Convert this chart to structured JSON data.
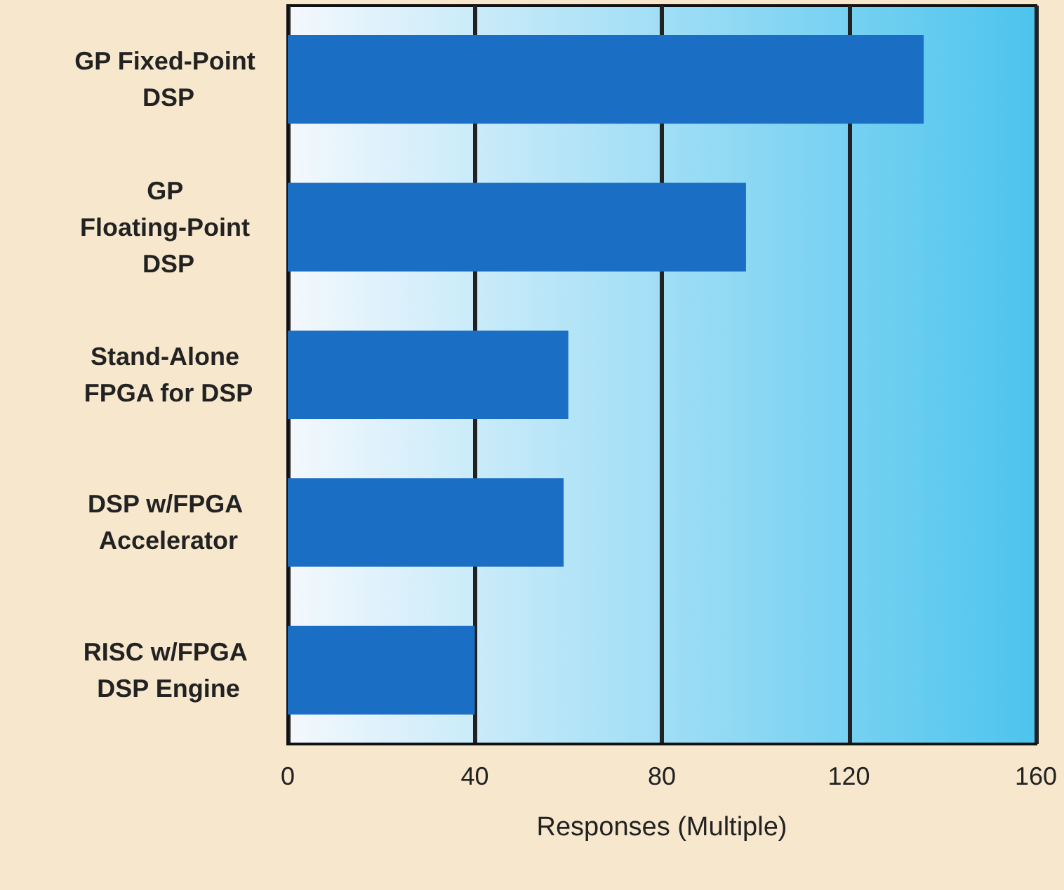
{
  "chart_data": {
    "type": "bar",
    "orientation": "horizontal",
    "xlabel": "Responses (Multiple)",
    "categories": [
      "GP Fixed-Point DSP",
      "GP Floating-Point DSP",
      "Stand-Alone FPGA for DSP",
      "DSP w/FPGA Accelerator",
      "RISC w/FPGA DSP Engine"
    ],
    "values": [
      136,
      98,
      60,
      59,
      40
    ],
    "color": "#1a6ec4",
    "xlim": [
      0,
      160
    ],
    "xticks": [
      0,
      40,
      80,
      120,
      160
    ],
    "grid": "x"
  }
}
